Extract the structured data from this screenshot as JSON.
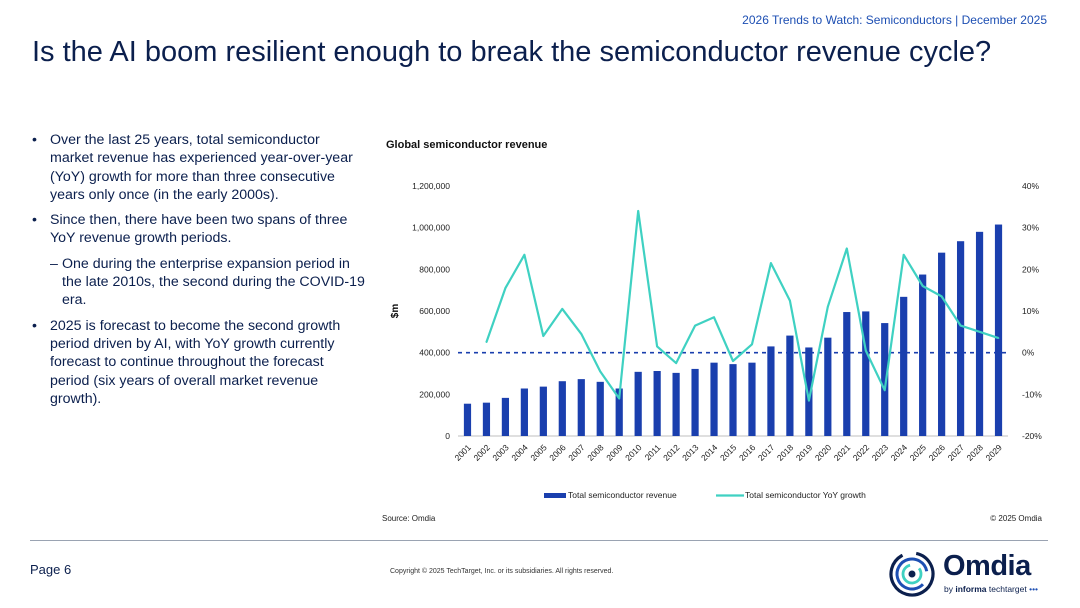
{
  "header": {
    "tag": "2026 Trends to Watch: Semiconductors | December 2025"
  },
  "title": "Is the AI boom resilient enough to break the semiconductor revenue cycle?",
  "bullets": [
    {
      "level": 1,
      "text": "Over the last 25 years, total semiconductor market revenue has experienced year-over-year (YoY) growth for more than three consecutive years only once (in the early 2000s)."
    },
    {
      "level": 1,
      "text": "Since then, there have been two spans of three YoY revenue growth periods."
    },
    {
      "level": 2,
      "text": "One during the enterprise expansion period in the late 2010s, the second during the COVID-19 era."
    },
    {
      "level": 1,
      "text": "2025 is forecast to become the second growth period driven by AI, with YoY growth currently forecast to continue throughout the forecast period (six years of overall market revenue growth)."
    }
  ],
  "bullet_glyph": "•",
  "sub_glyph": "–",
  "chart_data": {
    "type": "bar",
    "title": "Global semiconductor revenue",
    "ylabel": "$m",
    "categories": [
      "2001",
      "2002",
      "2003",
      "2004",
      "2005",
      "2006",
      "2007",
      "2008",
      "2009",
      "2010",
      "2011",
      "2012",
      "2013",
      "2014",
      "2015",
      "2016",
      "2017",
      "2018",
      "2019",
      "2020",
      "2021",
      "2022",
      "2023",
      "2024",
      "2025",
      "2026",
      "2027",
      "2028",
      "2029"
    ],
    "ylim": [
      0,
      1200000
    ],
    "y_ticks": [
      "0",
      "200,000",
      "400,000",
      "600,000",
      "800,000",
      "1,000,000",
      "1,200,000"
    ],
    "y2lim": [
      -20,
      40
    ],
    "y2_ticks": [
      "-20%",
      "-10%",
      "0%",
      "10%",
      "20%",
      "30%",
      "40%"
    ],
    "series": [
      {
        "name": "Total semiconductor revenue",
        "kind": "bar",
        "axis": "left",
        "color": "#1a3fae",
        "values": [
          155000,
          160000,
          183000,
          228000,
          237000,
          263000,
          273000,
          260000,
          228000,
          308000,
          312000,
          303000,
          322000,
          352000,
          345000,
          352000,
          430000,
          482000,
          425000,
          472000,
          595000,
          598000,
          542000,
          668000,
          775000,
          880000,
          935000,
          980000,
          1015000
        ]
      },
      {
        "name": "Total semiconductor YoY growth",
        "kind": "line",
        "axis": "right",
        "color": "#3fd1c2",
        "values": [
          null,
          2.5,
          15.5,
          23.5,
          4,
          10.5,
          4.5,
          -4.5,
          -11,
          34,
          1.5,
          -2.5,
          6.5,
          8.5,
          -2,
          2,
          21.5,
          12.5,
          -11.5,
          11,
          25,
          0.5,
          -9,
          23.5,
          16,
          13.5,
          6.5,
          5,
          3.5
        ]
      }
    ],
    "zero_line": {
      "style": "dashed",
      "color": "#1a3fae"
    },
    "grid": false,
    "legend": "bottom"
  },
  "source": "Source: Omdia",
  "chart_copyright": "© 2025 Omdia",
  "footer": {
    "page": "Page 6",
    "copyright": "Copyright © 2025 TechTarget, Inc. or its subsidiaries. All rights reserved."
  },
  "logo": {
    "word": "Omdia",
    "sub_by": "by",
    "sub_brand": "informa",
    "sub_rest": "techtarget"
  }
}
